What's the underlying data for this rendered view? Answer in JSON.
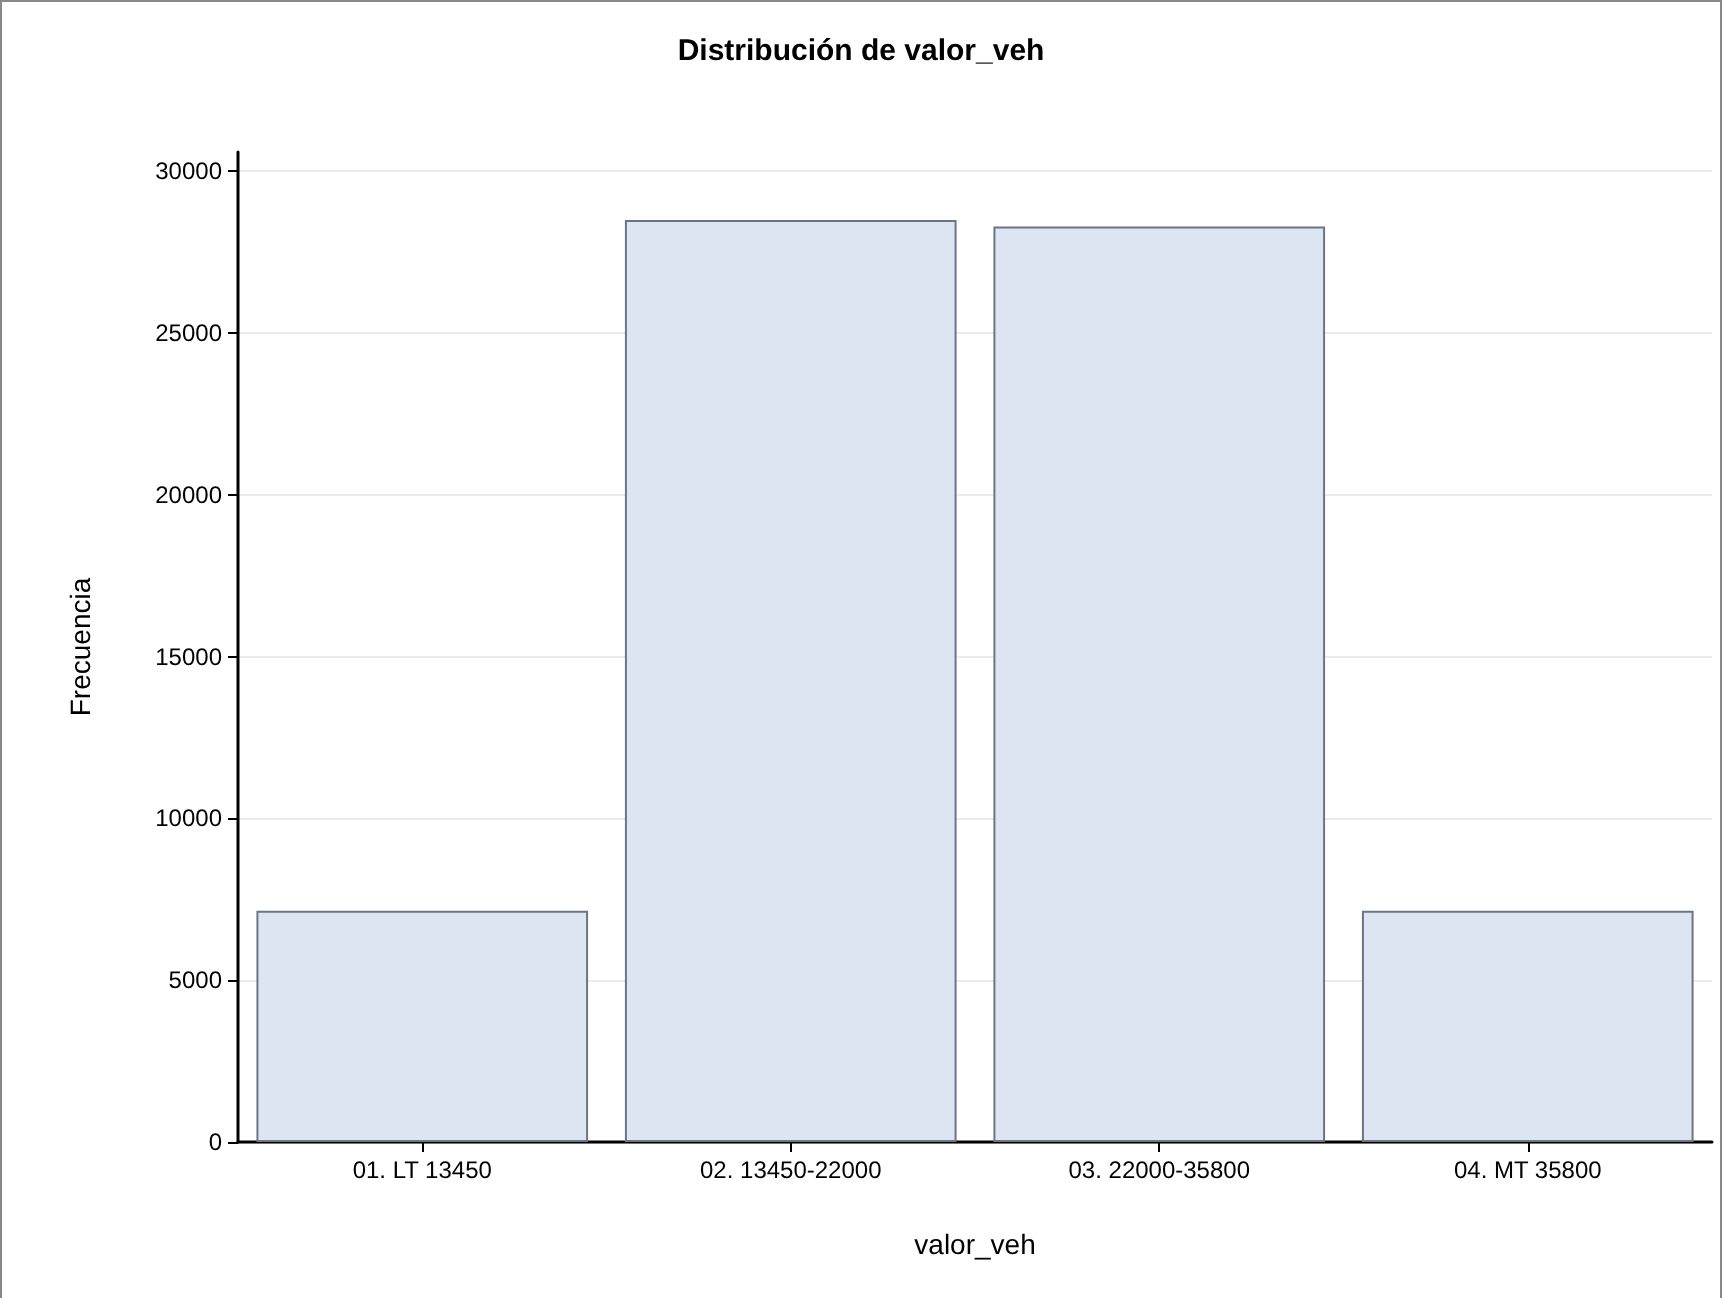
{
  "chart_data": {
    "type": "bar",
    "title": "Distribución de valor_veh",
    "xlabel": "valor_veh",
    "ylabel": "Frecuencia",
    "categories": [
      "01. LT 13450",
      "02. 13450-22000",
      "03. 22000-35800",
      "04. MT 35800"
    ],
    "values": [
      7150,
      28500,
      28300,
      7150
    ],
    "color": "#dce5f1",
    "ylim": [
      0,
      30600
    ],
    "yticks": [
      0,
      5000,
      10000,
      15000,
      20000,
      25000,
      30000
    ],
    "grid": "y"
  }
}
